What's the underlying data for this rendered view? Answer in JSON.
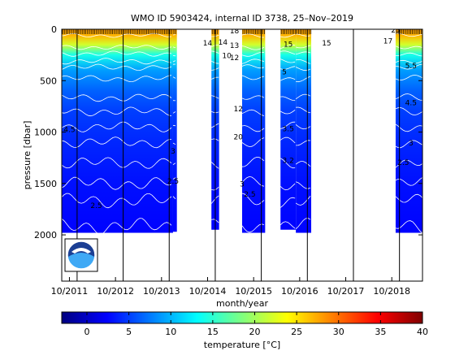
{
  "chart_data": {
    "type": "heatmap",
    "title": "WMO ID 5903424, internal ID 3738, 25–Nov–2019",
    "xlabel": "month/year",
    "ylabel": "pressure [dbar]",
    "colorbar_label": "temperature [°C]",
    "x_ticks": [
      "10/2011",
      "10/2012",
      "10/2013",
      "10/2014",
      "10/2015",
      "10/2016",
      "10/2017",
      "10/2018"
    ],
    "y_ticks": [
      0,
      500,
      1000,
      1500,
      2000
    ],
    "ylim": [
      2450,
      0
    ],
    "xlim": [
      "2011-08",
      "2019-05"
    ],
    "colorbar_ticks": [
      0,
      5,
      10,
      15,
      20,
      25,
      30,
      35,
      40
    ],
    "colorbar_range": [
      -3,
      40
    ],
    "colormap": [
      "#00007f",
      "#0000ff",
      "#007fff",
      "#00ffff",
      "#7fff7f",
      "#ffff00",
      "#ff7f00",
      "#ff0000",
      "#7f0000"
    ],
    "plot_background": "#ffffff",
    "contour_color": "#ffffff",
    "year_divider_months": [
      "2011-12",
      "2012-12",
      "2013-12",
      "2014-12",
      "2015-12",
      "2016-12",
      "2017-12",
      "2018-12"
    ],
    "data_segments": [
      {
        "from": "2011-08",
        "to": "2013-12",
        "max_pressure": 1980
      },
      {
        "from": "2014-01",
        "to": "2014-01",
        "max_pressure": 1970
      },
      {
        "from": "2014-11",
        "to": "2014-12",
        "max_pressure": 1950
      },
      {
        "from": "2015-07",
        "to": "2015-12",
        "max_pressure": 1980
      },
      {
        "from": "2016-05",
        "to": "2016-08",
        "max_pressure": 1950
      },
      {
        "from": "2016-09",
        "to": "2016-12",
        "max_pressure": 1980
      },
      {
        "from": "2018-11",
        "to": "2019-05",
        "max_pressure": 1980
      }
    ],
    "data_gaps": [
      {
        "from": "2014-02",
        "to": "2014-10"
      },
      {
        "from": "2015-01",
        "to": "2015-06"
      },
      {
        "from": "2017-01",
        "to": "2018-10"
      }
    ],
    "temperature_profile": [
      {
        "pressure": 0,
        "temperature": 28
      },
      {
        "pressure": 60,
        "temperature": 27
      },
      {
        "pressure": 150,
        "temperature": 22
      },
      {
        "pressure": 250,
        "temperature": 14
      },
      {
        "pressure": 400,
        "temperature": 9
      },
      {
        "pressure": 600,
        "temperature": 6.5
      },
      {
        "pressure": 800,
        "temperature": 5
      },
      {
        "pressure": 1100,
        "temperature": 4
      },
      {
        "pressure": 1500,
        "temperature": 3
      },
      {
        "pressure": 2000,
        "temperature": 2.4
      }
    ],
    "contour_labels": [
      {
        "x": "2011-10",
        "pressure": 1000,
        "text": "4.5"
      },
      {
        "x": "2012-05",
        "pressure": 1740,
        "text": "2.5"
      },
      {
        "x": "2014-01",
        "pressure": 1210,
        "text": "3"
      },
      {
        "x": "2014-01",
        "pressure": 1500,
        "text": "2.5"
      },
      {
        "x": "2014-10",
        "pressure": 160,
        "text": "14"
      },
      {
        "x": "2015-02",
        "pressure": 150,
        "text": "14"
      },
      {
        "x": "2015-03",
        "pressure": 280,
        "text": "10"
      },
      {
        "x": "2015-05",
        "pressure": 40,
        "text": "18"
      },
      {
        "x": "2015-05",
        "pressure": 180,
        "text": "13"
      },
      {
        "x": "2015-05",
        "pressure": 300,
        "text": "12"
      },
      {
        "x": "2015-06",
        "pressure": 800,
        "text": "12"
      },
      {
        "x": "2015-06",
        "pressure": 1070,
        "text": "20"
      },
      {
        "x": "2015-07",
        "pressure": 1530,
        "text": "3"
      },
      {
        "x": "2015-09",
        "pressure": 1630,
        "text": "2.5"
      },
      {
        "x": "2016-06",
        "pressure": 440,
        "text": "5"
      },
      {
        "x": "2016-07",
        "pressure": 170,
        "text": "15"
      },
      {
        "x": "2016-07",
        "pressure": 990,
        "text": "3.5"
      },
      {
        "x": "2016-07",
        "pressure": 1300,
        "text": "3.2"
      },
      {
        "x": "2017-05",
        "pressure": 160,
        "text": "15"
      },
      {
        "x": "2018-09",
        "pressure": 140,
        "text": "17"
      },
      {
        "x": "2018-11",
        "pressure": 30,
        "text": "23"
      },
      {
        "x": "2019-01",
        "pressure": 1320,
        "text": "2.5"
      },
      {
        "x": "2019-03",
        "pressure": 380,
        "text": "5.5"
      },
      {
        "x": "2019-03",
        "pressure": 740,
        "text": "4.5"
      },
      {
        "x": "2019-03",
        "pressure": 1130,
        "text": "3"
      }
    ]
  }
}
